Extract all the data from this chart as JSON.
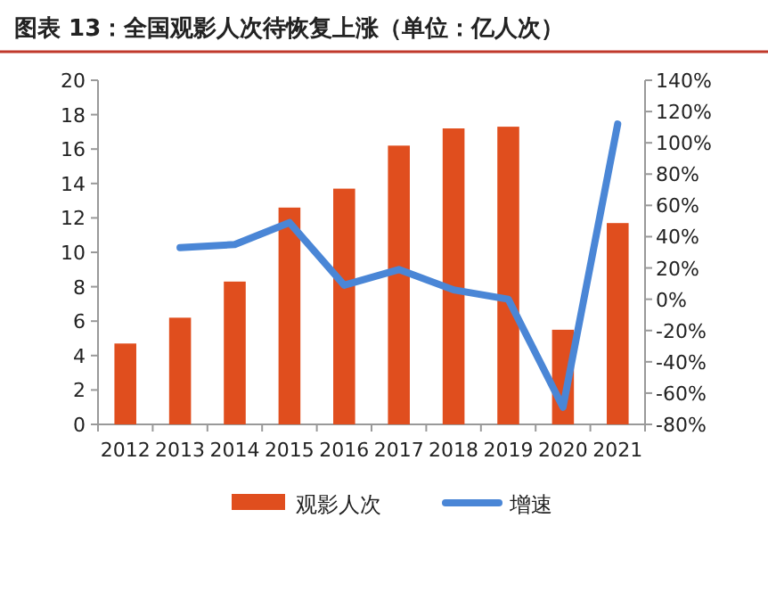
{
  "chart_data": {
    "type": "bar",
    "title": "图表 13：全国观影人次待恢复上涨（单位：亿人次）",
    "categories": [
      "2012",
      "2013",
      "2014",
      "2015",
      "2016",
      "2017",
      "2018",
      "2019",
      "2020",
      "2021"
    ],
    "series": [
      {
        "name": "观影人次",
        "color": "#e04e1e",
        "values": [
          4.7,
          6.2,
          8.3,
          12.6,
          13.7,
          16.2,
          17.2,
          17.3,
          5.5,
          11.7
        ]
      },
      {
        "name": "增速",
        "type": "line",
        "axis": "y2",
        "color": "#4a86d6",
        "values": [
          null,
          33,
          35,
          49,
          9,
          19,
          6,
          0,
          -69,
          112
        ]
      }
    ],
    "ylim": [
      0,
      20
    ],
    "yticks": [
      0,
      2,
      4,
      6,
      8,
      10,
      12,
      14,
      16,
      18,
      20
    ],
    "y2lim": [
      -80,
      140
    ],
    "y2ticks": [
      {
        "value": -80,
        "label": "-80%"
      },
      {
        "value": -60,
        "label": "-60%"
      },
      {
        "value": -40,
        "label": "-40%"
      },
      {
        "value": -20,
        "label": "-20%"
      },
      {
        "value": 0,
        "label": "0%"
      },
      {
        "value": 20,
        "label": "20%"
      },
      {
        "value": 40,
        "label": "40%"
      },
      {
        "value": 60,
        "label": "60%"
      },
      {
        "value": 80,
        "label": "80%"
      },
      {
        "value": 100,
        "label": "100%"
      },
      {
        "value": 120,
        "label": "120%"
      },
      {
        "value": 140,
        "label": "140%"
      }
    ],
    "grid": false,
    "legend": "bottom"
  }
}
